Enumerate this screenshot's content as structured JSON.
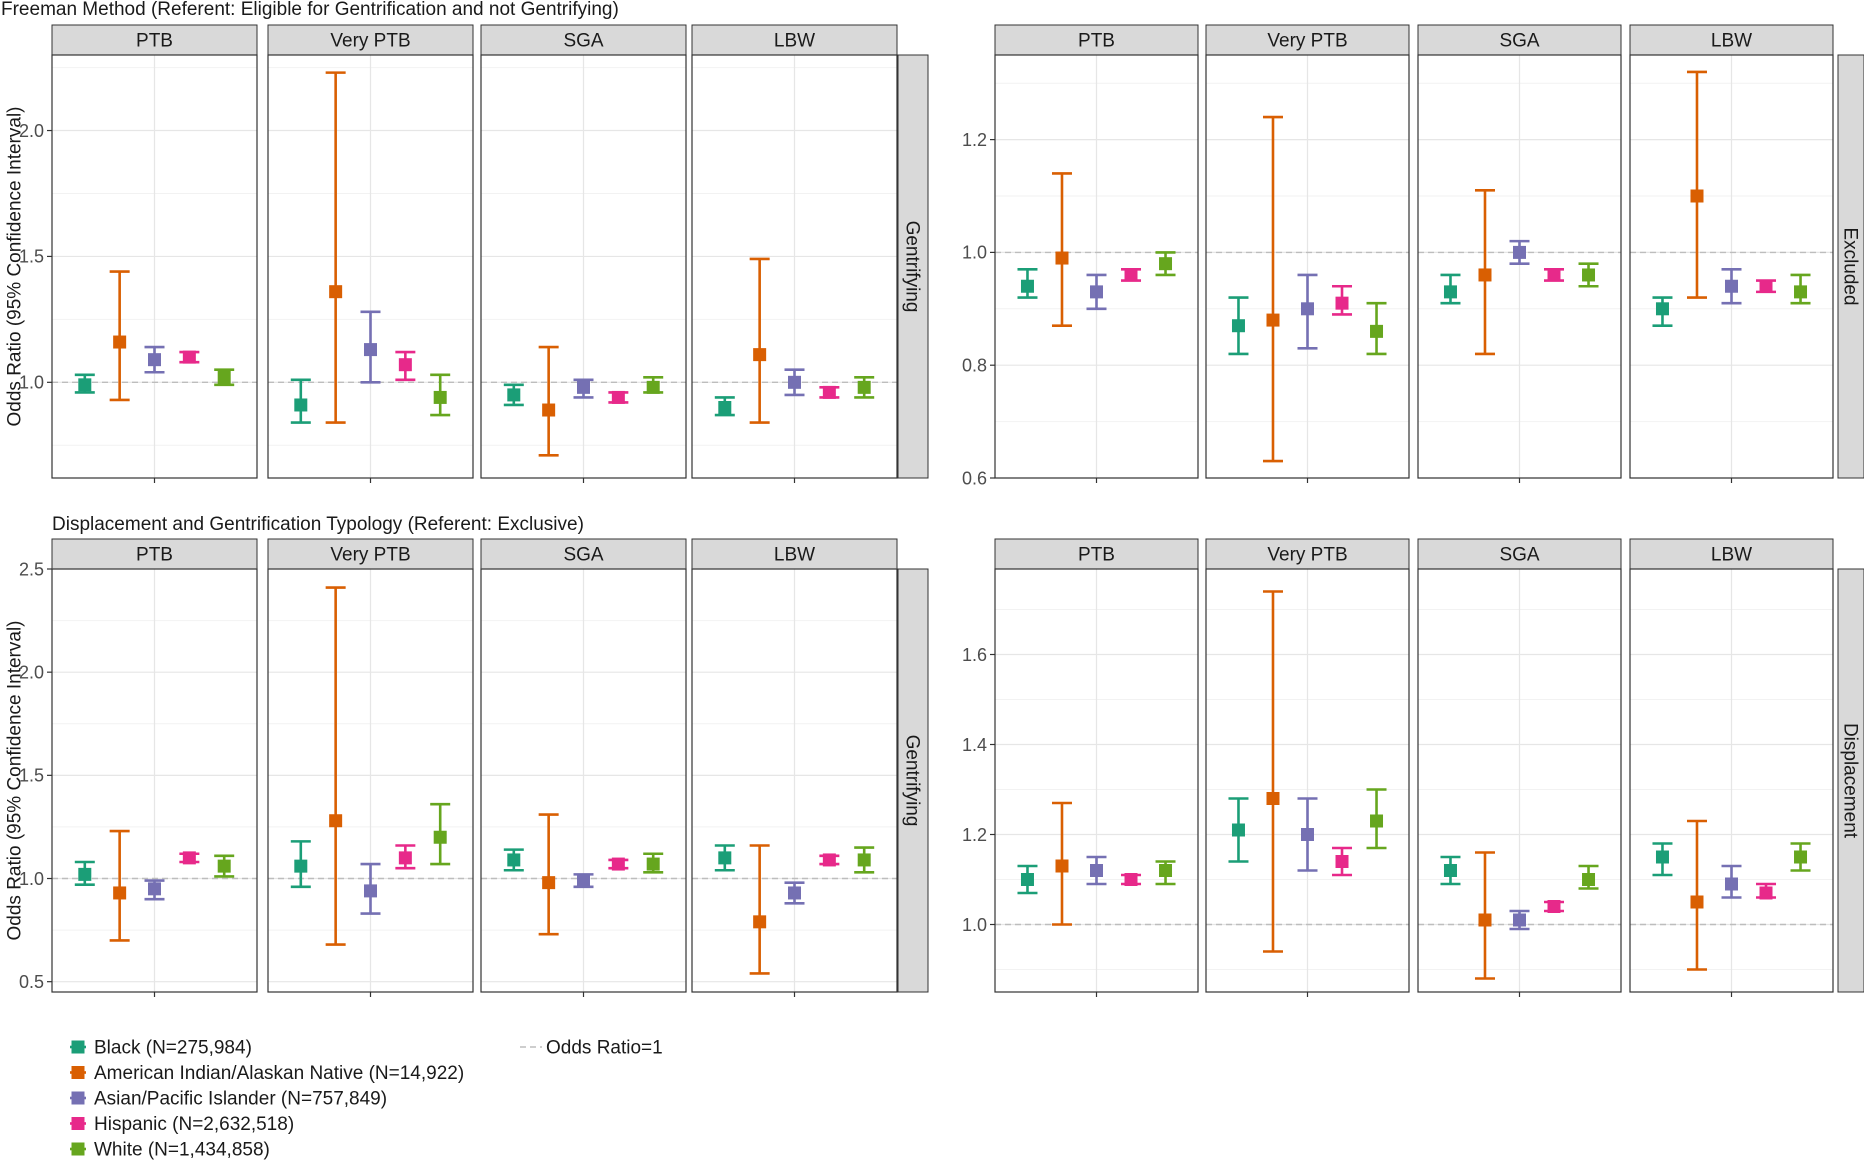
{
  "sections": [
    {
      "title": "Freeman Method (Referent: Eligible for Gentrification and not Gentrifying)"
    },
    {
      "title": "Displacement and Gentrification Typology (Referent: Exclusive)"
    }
  ],
  "legend": {
    "series": [
      {
        "label": "Black (N=275,984)",
        "color": "#1b9e77"
      },
      {
        "label": "American Indian/Alaskan Native (N=14,922)",
        "color": "#d95f02"
      },
      {
        "label": "Asian/Pacific Islander (N=757,849)",
        "color": "#7570b3"
      },
      {
        "label": "Hispanic (N=2,632,518)",
        "color": "#e7298a"
      },
      {
        "label": "White (N=1,434,858)",
        "color": "#66a61e"
      }
    ],
    "reference_label": "Odds Ratio=1"
  },
  "chart_data": [
    {
      "type": "scatter",
      "section": 0,
      "strip_right": "Gentrifying",
      "ylabel": "Odds Ratio (95% Confidence Interval)",
      "ylim": [
        0.62,
        2.3
      ],
      "yticks": [
        1.0,
        1.5,
        2.0
      ],
      "ytick_labels": [
        "1.0",
        "1.5",
        "2.0"
      ],
      "reference_line": 1.0,
      "facets": [
        "PTB",
        "Very PTB",
        "SGA",
        "LBW"
      ],
      "series": [
        {
          "name": "Black (N=275,984)",
          "values": [
            [
              0.99,
              0.96,
              1.03
            ],
            [
              0.91,
              0.84,
              1.01
            ],
            [
              0.95,
              0.91,
              0.99
            ],
            [
              0.9,
              0.87,
              0.94
            ]
          ]
        },
        {
          "name": "American Indian/Alaskan Native (N=14,922)",
          "values": [
            [
              1.16,
              0.93,
              1.44
            ],
            [
              1.36,
              0.84,
              2.23
            ],
            [
              0.89,
              0.71,
              1.14
            ],
            [
              1.11,
              0.84,
              1.49
            ]
          ]
        },
        {
          "name": "Asian/Pacific Islander (N=757,849)",
          "values": [
            [
              1.09,
              1.04,
              1.14
            ],
            [
              1.13,
              1.0,
              1.28
            ],
            [
              0.98,
              0.94,
              1.01
            ],
            [
              1.0,
              0.95,
              1.05
            ]
          ]
        },
        {
          "name": "Hispanic (N=2,632,518)",
          "values": [
            [
              1.1,
              1.08,
              1.12
            ],
            [
              1.07,
              1.01,
              1.12
            ],
            [
              0.94,
              0.92,
              0.96
            ],
            [
              0.96,
              0.94,
              0.98
            ]
          ]
        },
        {
          "name": "White (N=1,434,858)",
          "values": [
            [
              1.02,
              0.99,
              1.05
            ],
            [
              0.94,
              0.87,
              1.03
            ],
            [
              0.98,
              0.96,
              1.02
            ],
            [
              0.98,
              0.94,
              1.02
            ]
          ]
        }
      ]
    },
    {
      "type": "scatter",
      "section": 0,
      "strip_right": "Excluded",
      "ylabel": "",
      "ylim": [
        0.6,
        1.35
      ],
      "yticks": [
        0.6,
        0.8,
        1.0,
        1.2
      ],
      "ytick_labels": [
        "0.6",
        "0.8",
        "1.0",
        "1.2"
      ],
      "reference_line": 1.0,
      "facets": [
        "PTB",
        "Very PTB",
        "SGA",
        "LBW"
      ],
      "series": [
        {
          "name": "Black (N=275,984)",
          "values": [
            [
              0.94,
              0.92,
              0.97
            ],
            [
              0.87,
              0.82,
              0.92
            ],
            [
              0.93,
              0.91,
              0.96
            ],
            [
              0.9,
              0.87,
              0.92
            ]
          ]
        },
        {
          "name": "American Indian/Alaskan Native (N=14,922)",
          "values": [
            [
              0.99,
              0.87,
              1.14
            ],
            [
              0.88,
              0.63,
              1.24
            ],
            [
              0.96,
              0.82,
              1.11
            ],
            [
              1.1,
              0.92,
              1.32
            ]
          ]
        },
        {
          "name": "Asian/Pacific Islander (N=757,849)",
          "values": [
            [
              0.93,
              0.9,
              0.96
            ],
            [
              0.9,
              0.83,
              0.96
            ],
            [
              1.0,
              0.98,
              1.02
            ],
            [
              0.94,
              0.91,
              0.97
            ]
          ]
        },
        {
          "name": "Hispanic (N=2,632,518)",
          "values": [
            [
              0.96,
              0.95,
              0.97
            ],
            [
              0.91,
              0.89,
              0.94
            ],
            [
              0.96,
              0.95,
              0.97
            ],
            [
              0.94,
              0.93,
              0.95
            ]
          ]
        },
        {
          "name": "White (N=1,434,858)",
          "values": [
            [
              0.98,
              0.96,
              1.0
            ],
            [
              0.86,
              0.82,
              0.91
            ],
            [
              0.96,
              0.94,
              0.98
            ],
            [
              0.93,
              0.91,
              0.96
            ]
          ]
        }
      ]
    },
    {
      "type": "scatter",
      "section": 1,
      "strip_right": "Gentrifying",
      "ylabel": "Odds Ratio (95% Confidence Interval)",
      "ylim": [
        0.45,
        2.5
      ],
      "yticks": [
        0.5,
        1.0,
        1.5,
        2.0,
        2.5
      ],
      "ytick_labels": [
        "0.5",
        "1.0",
        "1.5",
        "2.0",
        "2.5"
      ],
      "reference_line": 1.0,
      "facets": [
        "PTB",
        "Very PTB",
        "SGA",
        "LBW"
      ],
      "series": [
        {
          "name": "Black (N=275,984)",
          "values": [
            [
              1.02,
              0.97,
              1.08
            ],
            [
              1.06,
              0.96,
              1.18
            ],
            [
              1.09,
              1.04,
              1.14
            ],
            [
              1.1,
              1.04,
              1.16
            ]
          ]
        },
        {
          "name": "American Indian/Alaskan Native (N=14,922)",
          "values": [
            [
              0.93,
              0.7,
              1.23
            ],
            [
              1.28,
              0.68,
              2.41
            ],
            [
              0.98,
              0.73,
              1.31
            ],
            [
              0.79,
              0.54,
              1.16
            ]
          ]
        },
        {
          "name": "Asian/Pacific Islander (N=757,849)",
          "values": [
            [
              0.95,
              0.9,
              0.99
            ],
            [
              0.94,
              0.83,
              1.07
            ],
            [
              0.99,
              0.96,
              1.02
            ],
            [
              0.93,
              0.88,
              0.98
            ]
          ]
        },
        {
          "name": "Hispanic (N=2,632,518)",
          "values": [
            [
              1.1,
              1.08,
              1.12
            ],
            [
              1.1,
              1.05,
              1.16
            ],
            [
              1.07,
              1.05,
              1.09
            ],
            [
              1.09,
              1.07,
              1.11
            ]
          ]
        },
        {
          "name": "White (N=1,434,858)",
          "values": [
            [
              1.06,
              1.01,
              1.11
            ],
            [
              1.2,
              1.07,
              1.36
            ],
            [
              1.07,
              1.03,
              1.12
            ],
            [
              1.09,
              1.03,
              1.15
            ]
          ]
        }
      ]
    },
    {
      "type": "scatter",
      "section": 1,
      "strip_right": "Displacement",
      "ylabel": "",
      "ylim": [
        0.85,
        1.79
      ],
      "yticks": [
        1.0,
        1.2,
        1.4,
        1.6
      ],
      "ytick_labels": [
        "1.0",
        "1.2",
        "1.4",
        "1.6"
      ],
      "reference_line": 1.0,
      "facets": [
        "PTB",
        "Very PTB",
        "SGA",
        "LBW"
      ],
      "series": [
        {
          "name": "Black (N=275,984)",
          "values": [
            [
              1.1,
              1.07,
              1.13
            ],
            [
              1.21,
              1.14,
              1.28
            ],
            [
              1.12,
              1.09,
              1.15
            ],
            [
              1.15,
              1.11,
              1.18
            ]
          ]
        },
        {
          "name": "American Indian/Alaskan Native (N=14,922)",
          "values": [
            [
              1.13,
              1.0,
              1.27
            ],
            [
              1.28,
              0.94,
              1.74
            ],
            [
              1.01,
              0.88,
              1.16
            ],
            [
              1.05,
              0.9,
              1.23
            ]
          ]
        },
        {
          "name": "Asian/Pacific Islander (N=757,849)",
          "values": [
            [
              1.12,
              1.09,
              1.15
            ],
            [
              1.2,
              1.12,
              1.28
            ],
            [
              1.01,
              0.99,
              1.03
            ],
            [
              1.09,
              1.06,
              1.13
            ]
          ]
        },
        {
          "name": "Hispanic (N=2,632,518)",
          "values": [
            [
              1.1,
              1.09,
              1.11
            ],
            [
              1.14,
              1.11,
              1.17
            ],
            [
              1.04,
              1.03,
              1.05
            ],
            [
              1.07,
              1.06,
              1.09
            ]
          ]
        },
        {
          "name": "White (N=1,434,858)",
          "values": [
            [
              1.12,
              1.09,
              1.14
            ],
            [
              1.23,
              1.17,
              1.3
            ],
            [
              1.1,
              1.08,
              1.13
            ],
            [
              1.15,
              1.12,
              1.18
            ]
          ]
        }
      ]
    }
  ]
}
